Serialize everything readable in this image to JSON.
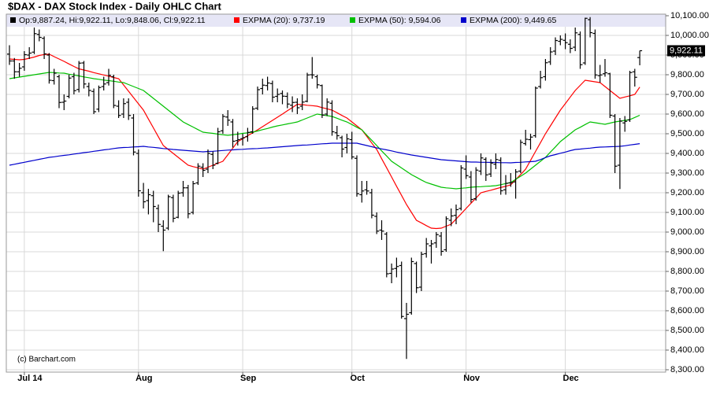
{
  "chart_data": {
    "type": "ohlc",
    "title": "$DAX - DAX Stock Index - Daily OHLC Chart",
    "ohlc_legend": "Op:9,887.24, Hi:9,922.11, Lo:9,848.06, Cl:9,922.11",
    "watermark": "(c) Barchart.com",
    "last_label": "9,922.11",
    "bar_color": "#000000",
    "grid": true,
    "categories": [
      null,
      null,
      null,
      "Jul 14",
      null,
      null,
      null,
      null,
      null,
      null,
      null,
      null,
      null,
      null,
      null,
      null,
      null,
      null,
      null,
      null,
      null,
      null,
      null,
      null,
      null,
      null,
      "Aug",
      null,
      null,
      null,
      null,
      null,
      null,
      null,
      null,
      null,
      null,
      null,
      null,
      null,
      null,
      null,
      null,
      null,
      null,
      null,
      null,
      "Sep",
      null,
      null,
      null,
      null,
      null,
      null,
      null,
      null,
      null,
      null,
      null,
      null,
      null,
      null,
      null,
      null,
      null,
      null,
      null,
      null,
      null,
      "Oct",
      null,
      null,
      null,
      null,
      null,
      null,
      null,
      null,
      null,
      null,
      null,
      null,
      null,
      null,
      null,
      null,
      null,
      null,
      null,
      null,
      null,
      null,
      "Nov",
      null,
      null,
      null,
      null,
      null,
      null,
      null,
      null,
      null,
      null,
      null,
      null,
      null,
      null,
      null,
      null,
      null,
      null,
      null,
      "Dec",
      null,
      null,
      null,
      null,
      null,
      null,
      null,
      null,
      null,
      null,
      null,
      null,
      null,
      null,
      null
    ],
    "open": [
      9905,
      9870,
      9815,
      9840,
      9900,
      9915,
      10005,
      9985,
      9900,
      9770,
      9790,
      9660,
      9690,
      9790,
      9725,
      9860,
      9740,
      9715,
      9625,
      9740,
      9760,
      9790,
      9640,
      9600,
      9660,
      9580,
      9400,
      9200,
      9160,
      9185,
      9120,
      9030,
      9020,
      9175,
      9075,
      9200,
      9225,
      9100,
      9250,
      9330,
      9320,
      9395,
      9350,
      9515,
      9585,
      9560,
      9465,
      9475,
      9485,
      9510,
      9630,
      9730,
      9745,
      9755,
      9690,
      9705,
      9690,
      9645,
      9660,
      9640,
      9665,
      9800,
      9790,
      9745,
      9600,
      9655,
      9505,
      9480,
      9430,
      9470,
      9375,
      9190,
      9215,
      9200,
      9080,
      9010,
      8990,
      8790,
      8815,
      8830,
      8560,
      8590,
      8840,
      8720,
      8890,
      8930,
      8945,
      8980,
      8910,
      9060,
      9085,
      9120,
      9320,
      9280,
      9170,
      9310,
      9370,
      9295,
      9345,
      9365,
      9215,
      9250,
      9255,
      9310,
      9450,
      9470,
      9490,
      9740,
      9790,
      9865,
      9920,
      9970,
      9975,
      9955,
      9940,
      10005,
      9860,
      10080,
      10010,
      9795,
      9805,
      9805,
      9590,
      9340,
      9555,
      9570,
      9815,
      9887.24
    ],
    "high": [
      9950,
      9885,
      9860,
      9920,
      9940,
      10040,
      10030,
      9995,
      9910,
      9830,
      9800,
      9700,
      9800,
      9810,
      9870,
      9870,
      9760,
      9730,
      9745,
      9790,
      9830,
      9800,
      9670,
      9680,
      9680,
      9600,
      9420,
      9250,
      9220,
      9210,
      9140,
      9060,
      9190,
      9190,
      9210,
      9260,
      9240,
      9260,
      9350,
      9350,
      9420,
      9410,
      9530,
      9600,
      9620,
      9575,
      9510,
      9500,
      9530,
      9640,
      9740,
      9780,
      9790,
      9770,
      9730,
      9720,
      9710,
      9690,
      9680,
      9700,
      9810,
      9890,
      9800,
      9750,
      9680,
      9670,
      9540,
      9490,
      9500,
      9510,
      9390,
      9260,
      9260,
      9220,
      9100,
      9060,
      9000,
      8840,
      8870,
      8850,
      8640,
      8870,
      8850,
      8900,
      8970,
      8960,
      9000,
      9000,
      9080,
      9120,
      9140,
      9340,
      9390,
      9310,
      9330,
      9400,
      9380,
      9370,
      9400,
      9380,
      9290,
      9300,
      9320,
      9470,
      9520,
      9500,
      9740,
      9820,
      9880,
      9940,
      9990,
      10000,
      10010,
      9980,
      10040,
      10020,
      10090,
      10093,
      10030,
      9850,
      9880,
      9810,
      9600,
      9580,
      9590,
      9820,
      9830,
      9922.11
    ],
    "low": [
      9850,
      9780,
      9790,
      9820,
      9880,
      9905,
      9970,
      9880,
      9755,
      9750,
      9630,
      9620,
      9680,
      9700,
      9710,
      9730,
      9690,
      9600,
      9610,
      9720,
      9745,
      9630,
      9580,
      9580,
      9570,
      9390,
      9180,
      9120,
      9090,
      9050,
      9000,
      8903,
      9010,
      9050,
      9070,
      9180,
      9070,
      9090,
      9240,
      9280,
      9300,
      9320,
      9345,
      9500,
      9540,
      9430,
      9440,
      9440,
      9460,
      9500,
      9620,
      9700,
      9720,
      9660,
      9660,
      9650,
      9630,
      9610,
      9600,
      9620,
      9660,
      9780,
      9730,
      9580,
      9590,
      9490,
      9470,
      9380,
      9400,
      9370,
      9180,
      9150,
      9190,
      9070,
      8990,
      8960,
      8770,
      8740,
      8770,
      8560,
      8355,
      8580,
      8690,
      8700,
      8870,
      8840,
      8920,
      8880,
      8900,
      9030,
      9040,
      9110,
      9270,
      9150,
      9160,
      9290,
      9260,
      9280,
      9320,
      9190,
      9190,
      9230,
      9170,
      9300,
      9440,
      9420,
      9480,
      9730,
      9770,
      9850,
      9900,
      9950,
      9930,
      9910,
      9920,
      9830,
      9850,
      9990,
      9780,
      9760,
      9790,
      9580,
      9300,
      9219,
      9510,
      9560,
      9740,
      9848.06
    ],
    "close": [
      9870,
      9815,
      9833,
      9902,
      9910,
      10009,
      9990,
      9906,
      9772,
      9808,
      9659,
      9666,
      9783,
      9719,
      9859,
      9753,
      9720,
      9612,
      9735,
      9753,
      9797,
      9644,
      9593,
      9653,
      9593,
      9407,
      9210,
      9154,
      9190,
      9130,
      9039,
      9010,
      9180,
      9070,
      9198,
      9225,
      9093,
      9246,
      9335,
      9314,
      9400,
      9340,
      9510,
      9588,
      9569,
      9462,
      9470,
      9480,
      9507,
      9626,
      9724,
      9747,
      9758,
      9686,
      9700,
      9691,
      9651,
      9659,
      9632,
      9661,
      9799,
      9799,
      9749,
      9595,
      9661,
      9510,
      9490,
      9422,
      9474,
      9382,
      9195,
      9209,
      9209,
      9086,
      9005,
      9005,
      8788,
      8812,
      8825,
      8571,
      8582,
      8850,
      8717,
      8887,
      8940,
      8940,
      8987,
      8902,
      9068,
      9082,
      9114,
      9326,
      9287,
      9166,
      9315,
      9377,
      9291,
      9351,
      9369,
      9210,
      9248,
      9252,
      9306,
      9456,
      9472,
      9483,
      9732,
      9785,
      9861,
      9916,
      9974,
      9980,
      9963,
      9934,
      10013,
      9851,
      10087,
      10014,
      9799,
      9799,
      9810,
      9594,
      9335,
      9564,
      9563,
      9811,
      9787,
      9922.11
    ],
    "series": [
      {
        "name": "EXPMA (20): 9,737.19",
        "color": "#ff0000",
        "values": [
          9880,
          9878,
          9876,
          9878,
          9884,
          9890,
          9898,
          9903,
          9905,
          9892,
          9880,
          9868,
          9855,
          9842,
          9830,
          9824,
          9818,
          9811,
          9805,
          9799,
          9793,
          9786,
          9780,
          9748,
          9716,
          9684,
          9652,
          9620,
          9575,
          9530,
          9485,
          9440,
          9420,
          9400,
          9380,
          9360,
          9340,
          9333,
          9327,
          9320,
          9330,
          9340,
          9350,
          9360,
          9393,
          9427,
          9460,
          9475,
          9490,
          9505,
          9520,
          9536,
          9552,
          9568,
          9584,
          9600,
          9617,
          9633,
          9650,
          9648,
          9645,
          9643,
          9640,
          9633,
          9627,
          9620,
          9607,
          9593,
          9580,
          9560,
          9540,
          9520,
          9487,
          9453,
          9420,
          9373,
          9327,
          9280,
          9233,
          9187,
          9140,
          9100,
          9060,
          9047,
          9033,
          9020,
          9018,
          9020,
          9030,
          9040,
          9067,
          9093,
          9120,
          9147,
          9173,
          9200,
          9207,
          9213,
          9220,
          9227,
          9233,
          9240,
          9267,
          9293,
          9320,
          9365,
          9410,
          9455,
          9500,
          9540,
          9580,
          9620,
          9653,
          9687,
          9720,
          9746,
          9772,
          9768,
          9764,
          9760,
          9740,
          9720,
          9700,
          9680,
          9687,
          9693,
          9700,
          9737.19
        ]
      },
      {
        "name": "EXPMA (50): 9,594.06",
        "color": "#00c000",
        "values": [
          9780,
          9784,
          9788,
          9792,
          9796,
          9800,
          9804,
          9808,
          9812,
          9811,
          9809,
          9808,
          9803,
          9799,
          9794,
          9789,
          9785,
          9780,
          9777,
          9773,
          9770,
          9767,
          9763,
          9760,
          9750,
          9740,
          9730,
          9720,
          9700,
          9680,
          9660,
          9640,
          9620,
          9600,
          9580,
          9560,
          9547,
          9534,
          9521,
          9508,
          9505,
          9502,
          9498,
          9495,
          9492,
          9495,
          9498,
          9502,
          9505,
          9508,
          9514,
          9521,
          9527,
          9534,
          9540,
          9545,
          9550,
          9555,
          9560,
          9570,
          9580,
          9590,
          9600,
          9596,
          9592,
          9588,
          9579,
          9569,
          9560,
          9547,
          9533,
          9520,
          9493,
          9467,
          9440,
          9413,
          9387,
          9360,
          9343,
          9326,
          9309,
          9292,
          9279,
          9265,
          9252,
          9244,
          9236,
          9228,
          9225,
          9223,
          9220,
          9223,
          9225,
          9228,
          9230,
          9231,
          9233,
          9234,
          9236,
          9241,
          9247,
          9252,
          9268,
          9284,
          9300,
          9320,
          9340,
          9360,
          9380,
          9407,
          9433,
          9460,
          9480,
          9500,
          9520,
          9533,
          9547,
          9560,
          9556,
          9552,
          9548,
          9554,
          9560,
          9564,
          9568,
          9572,
          9583,
          9594.06
        ]
      },
      {
        "name": "EXPMA (200): 9,449.65",
        "color": "#0000cc",
        "values": [
          9340,
          9345,
          9350,
          9355,
          9360,
          9365,
          9370,
          9375,
          9380,
          9383,
          9387,
          9390,
          9393,
          9397,
          9400,
          9404,
          9407,
          9411,
          9414,
          9418,
          9421,
          9425,
          9428,
          9430,
          9431,
          9433,
          9434,
          9436,
          9433,
          9431,
          9428,
          9425,
          9423,
          9420,
          9418,
          9416,
          9414,
          9412,
          9410,
          9408,
          9410,
          9411,
          9413,
          9415,
          9417,
          9418,
          9420,
          9421,
          9423,
          9424,
          9425,
          9427,
          9428,
          9430,
          9432,
          9434,
          9436,
          9438,
          9440,
          9442,
          9443,
          9445,
          9447,
          9449,
          9450,
          9452,
          9452,
          9452,
          9452,
          9452,
          9452,
          9446,
          9440,
          9434,
          9428,
          9423,
          9418,
          9413,
          9407,
          9402,
          9397,
          9392,
          9388,
          9384,
          9380,
          9376,
          9372,
          9368,
          9366,
          9364,
          9362,
          9360,
          9358,
          9356,
          9356,
          9355,
          9355,
          9354,
          9354,
          9353,
          9353,
          9352,
          9354,
          9355,
          9357,
          9358,
          9360,
          9369,
          9379,
          9388,
          9394,
          9401,
          9407,
          9414,
          9420,
          9422,
          9425,
          9427,
          9430,
          9432,
          9433,
          9434,
          9435,
          9436,
          9439,
          9443,
          9446,
          9449.65
        ]
      }
    ],
    "ylim": [
      8300,
      10100
    ],
    "yticks": [
      {
        "value": 8300,
        "label": "8,300.00"
      },
      {
        "value": 8400,
        "label": "8,400.00"
      },
      {
        "value": 8500,
        "label": "8,500.00"
      },
      {
        "value": 8600,
        "label": "8,600.00"
      },
      {
        "value": 8700,
        "label": "8,700.00"
      },
      {
        "value": 8800,
        "label": "8,800.00"
      },
      {
        "value": 8900,
        "label": "8,900.00"
      },
      {
        "value": 9000,
        "label": "9,000.00"
      },
      {
        "value": 9100,
        "label": "9,100.00"
      },
      {
        "value": 9200,
        "label": "9,200.00"
      },
      {
        "value": 9300,
        "label": "9,300.00"
      },
      {
        "value": 9400,
        "label": "9,400.00"
      },
      {
        "value": 9500,
        "label": "9,500.00"
      },
      {
        "value": 9600,
        "label": "9,600.00"
      },
      {
        "value": 9700,
        "label": "9,700.00"
      },
      {
        "value": 9800,
        "label": "9,800.00"
      },
      {
        "value": 9900,
        "label": "9,900.00"
      },
      {
        "value": 10000,
        "label": "10,000.00"
      },
      {
        "value": 10100,
        "label": "10,100.00"
      }
    ]
  }
}
